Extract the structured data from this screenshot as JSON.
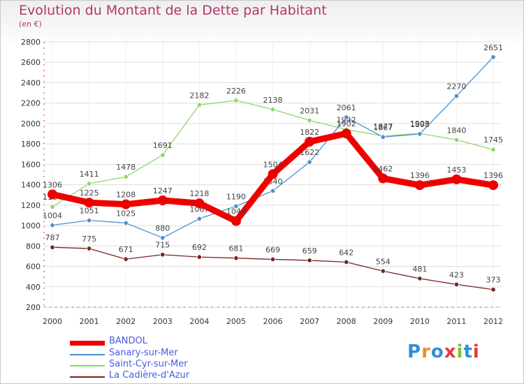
{
  "title": "Evolution du Montant de la Dette par Habitant",
  "subtitle": "(en €)",
  "logo": {
    "text": "Proxiti",
    "colors": [
      "#2f8fd8",
      "#f28c1e",
      "#2f8fd8",
      "#e23a3a",
      "#7fbf2f",
      "#2f8fd8",
      "#e23a3a"
    ]
  },
  "chart_data": {
    "type": "line",
    "title": "Evolution du Montant de la Dette par Habitant",
    "subtitle": "(en €)",
    "xlabel": "",
    "ylabel": "",
    "x": [
      2000,
      2001,
      2002,
      2003,
      2004,
      2005,
      2006,
      2007,
      2008,
      2009,
      2010,
      2011,
      2012
    ],
    "ylim": [
      200,
      2800
    ],
    "yticks": [
      200,
      400,
      600,
      800,
      1000,
      1200,
      1400,
      1600,
      1800,
      2000,
      2200,
      2400,
      2600,
      2800
    ],
    "grid": true,
    "legend_position": "bottom-left",
    "series": [
      {
        "name": "Saint-Cyr-sur-Mer",
        "color": "#8ed66a",
        "values": [
          1184,
          1411,
          1478,
          1691,
          2182,
          2226,
          2138,
          2031,
          1942,
          1877,
          1903,
          1840,
          1745
        ]
      },
      {
        "name": "Sanary-sur-Mer",
        "color": "#4b8fcf",
        "values": [
          1004,
          1051,
          1025,
          880,
          1067,
          1190,
          1340,
          1622,
          2061,
          1867,
          1898,
          2270,
          2651
        ]
      },
      {
        "name": "La Cadière-d'Azur",
        "color": "#7a2222",
        "values": [
          787,
          775,
          671,
          715,
          692,
          681,
          669,
          659,
          642,
          554,
          481,
          423,
          373
        ]
      },
      {
        "name": "BANDOL",
        "color": "#ee0000",
        "values": [
          1306,
          1225,
          1208,
          1247,
          1218,
          1044,
          1504,
          1822,
          1902,
          1462,
          1396,
          1453,
          1396
        ]
      }
    ]
  }
}
